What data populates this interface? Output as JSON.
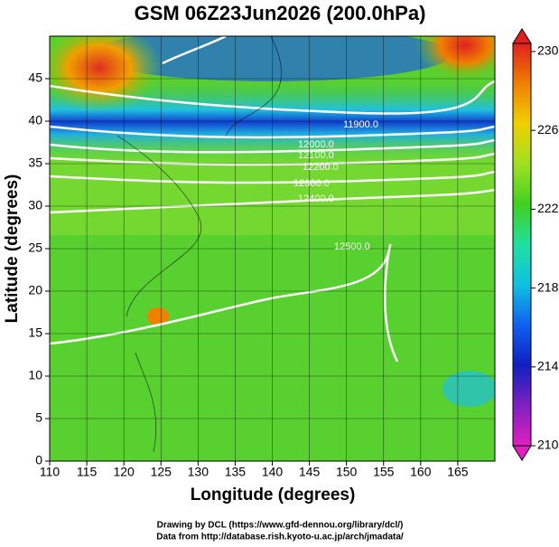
{
  "title": "GSM 06Z23Jun2026 (200.0hPa)",
  "map": {
    "xlabel": "Longitude (degrees)",
    "ylabel": "Latitude  (degrees)",
    "xlim": [
      110,
      170
    ],
    "xticks": [
      110,
      115,
      120,
      125,
      130,
      135,
      140,
      145,
      150,
      155,
      160,
      165
    ],
    "ylim": [
      0,
      50
    ],
    "yticks": [
      0,
      5,
      10,
      15,
      20,
      25,
      30,
      35,
      40,
      45
    ],
    "grid": true,
    "contour_labels": [
      "11900.0",
      "12000.0",
      "12100.0",
      "12200.0",
      "12300.0",
      "12400.0",
      "12500.0"
    ]
  },
  "colorbar": {
    "lim": [
      210,
      230
    ],
    "ticks": [
      210,
      214,
      218,
      222,
      226,
      230
    ],
    "colors": [
      "#e020c0",
      "#8020c0",
      "#1020c0",
      "#1060f0",
      "#10c0e0",
      "#20e0a0",
      "#40d020",
      "#a0e020",
      "#f0d000",
      "#f08000",
      "#e02020"
    ]
  },
  "credits": [
    "Drawing by DCL (https://www.gfd-dennou.org/library/dcl/)",
    "Data from http://database.rish.kyoto-u.ac.jp/arch/jmadata/"
  ]
}
